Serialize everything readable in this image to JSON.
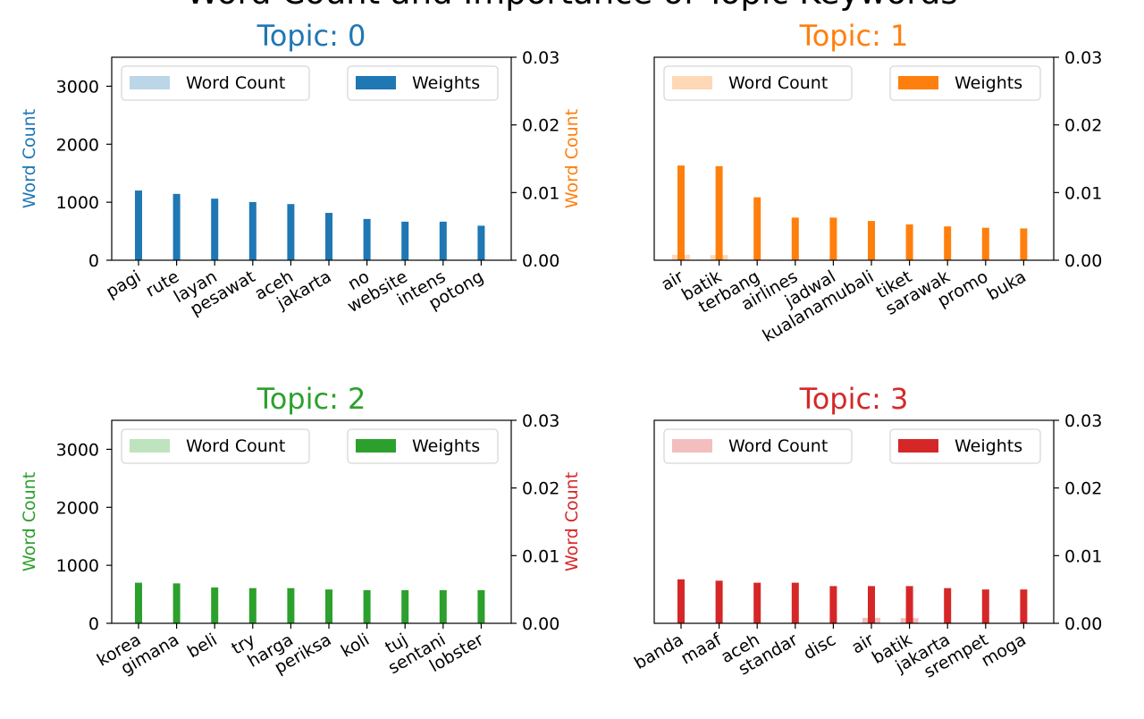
{
  "figure": {
    "title": "Word Count and Importance of Topic Keywords",
    "colors": {
      "topic0": "#1f77b4",
      "topic1": "#ff7f0e",
      "topic2": "#2ca02c",
      "topic3": "#d62728"
    }
  },
  "chart_data": [
    {
      "type": "bar",
      "title": "Topic: 0",
      "color": "#1f77b4",
      "categories": [
        "pagi",
        "rute",
        "layan",
        "pesawat",
        "aceh",
        "jakarta",
        "no",
        "website",
        "intens",
        "potong"
      ],
      "series": [
        {
          "name": "Word Count",
          "axis": "left",
          "values": [
            0,
            0,
            0,
            0,
            0,
            0,
            0,
            0,
            0,
            0
          ]
        },
        {
          "name": "Weights",
          "axis": "right",
          "values": [
            0.0103,
            0.0098,
            0.0091,
            0.0086,
            0.0083,
            0.007,
            0.0061,
            0.0057,
            0.0057,
            0.0051
          ]
        }
      ],
      "ylabel": "Word Count",
      "ylim": [
        0,
        3500
      ],
      "y2lim": [
        0,
        0.03
      ],
      "yticks": [
        0,
        1000,
        2000,
        3000
      ],
      "y2ticks": [
        "0.00",
        "0.01",
        "0.02",
        "0.03"
      ],
      "show_left_ticks": true,
      "legend": [
        "top-left",
        "top-right"
      ]
    },
    {
      "type": "bar",
      "title": "Topic: 1",
      "color": "#ff7f0e",
      "categories": [
        "air",
        "batik",
        "terbang",
        "airlines",
        "jadwal",
        "kualanamubali",
        "tiket",
        "sarawak",
        "promo",
        "buka"
      ],
      "series": [
        {
          "name": "Word Count",
          "axis": "left",
          "values": [
            95,
            90,
            0,
            0,
            0,
            0,
            0,
            0,
            0,
            0
          ]
        },
        {
          "name": "Weights",
          "axis": "right",
          "values": [
            0.014,
            0.0139,
            0.0093,
            0.0063,
            0.0063,
            0.0058,
            0.0053,
            0.005,
            0.0048,
            0.0047
          ]
        }
      ],
      "ylabel": "Word Count",
      "ylim": [
        0,
        3500
      ],
      "y2lim": [
        0,
        0.03
      ],
      "yticks": [],
      "y2ticks": [
        "0.00",
        "0.01",
        "0.02",
        "0.03"
      ],
      "show_left_ticks": false,
      "legend": [
        "top-left",
        "top-right"
      ]
    },
    {
      "type": "bar",
      "title": "Topic: 2",
      "color": "#2ca02c",
      "categories": [
        "korea",
        "gimana",
        "beli",
        "try",
        "harga",
        "periksa",
        "koli",
        "tuj",
        "sentani",
        "lobster"
      ],
      "series": [
        {
          "name": "Word Count",
          "axis": "left",
          "values": [
            0,
            0,
            0,
            0,
            0,
            0,
            0,
            0,
            0,
            0
          ]
        },
        {
          "name": "Weights",
          "axis": "right",
          "values": [
            0.006,
            0.0059,
            0.0053,
            0.0052,
            0.0052,
            0.005,
            0.0049,
            0.0049,
            0.0049,
            0.0049
          ]
        }
      ],
      "ylabel": "Word Count",
      "ylim": [
        0,
        3500
      ],
      "y2lim": [
        0,
        0.03
      ],
      "yticks": [
        0,
        1000,
        2000,
        3000
      ],
      "y2ticks": [
        "0.00",
        "0.01",
        "0.02",
        "0.03"
      ],
      "show_left_ticks": true,
      "legend": [
        "top-left",
        "top-right"
      ]
    },
    {
      "type": "bar",
      "title": "Topic: 3",
      "color": "#d62728",
      "categories": [
        "banda",
        "maaf",
        "aceh",
        "standar",
        "disc",
        "air",
        "batik",
        "jakarta",
        "srempet",
        "moga"
      ],
      "series": [
        {
          "name": "Word Count",
          "axis": "left",
          "values": [
            0,
            0,
            0,
            0,
            0,
            95,
            90,
            0,
            0,
            0
          ]
        },
        {
          "name": "Weights",
          "axis": "right",
          "values": [
            0.0065,
            0.0063,
            0.006,
            0.006,
            0.0055,
            0.0055,
            0.0055,
            0.0052,
            0.005,
            0.005
          ]
        }
      ],
      "ylabel": "Word Count",
      "ylim": [
        0,
        3500
      ],
      "y2lim": [
        0,
        0.03
      ],
      "yticks": [],
      "y2ticks": [
        "0.00",
        "0.01",
        "0.02",
        "0.03"
      ],
      "show_left_ticks": false,
      "legend": [
        "top-left",
        "top-right"
      ]
    }
  ]
}
